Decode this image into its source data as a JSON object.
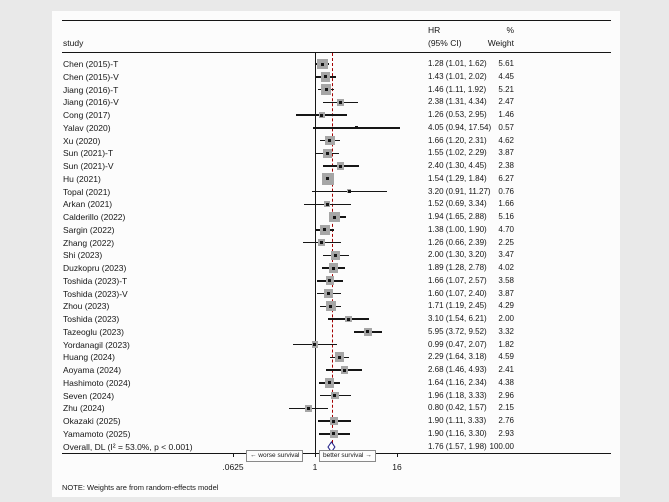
{
  "columns": {
    "study": "study",
    "hr_line1": "HR",
    "hr_line2": "(95% CI)",
    "weight_line1": "%",
    "weight_line2": "Weight"
  },
  "axis": {
    "ticks": [
      {
        "label": ".0625",
        "value": 0.0625
      },
      {
        "label": "1",
        "value": 1
      },
      {
        "label": "16",
        "value": 16
      }
    ],
    "left_note": "←  worse survival",
    "right_note": "better survival  →"
  },
  "footnote": "NOTE: Weights are from random-effects model",
  "colors": {
    "background": "#e9e9e9",
    "plot_background": "#fcfcfc",
    "line": "#161616",
    "marker": "#a6a6a6",
    "overall_reference_line": "#a40000",
    "diamond_stroke": "#26268a"
  },
  "chart_data": {
    "type": "forest",
    "effect_label": "HR (95% CI)",
    "x_scale": "log",
    "x_ticks": [
      0.0625,
      1,
      16
    ],
    "null_value": 1,
    "overall_estimate_line": 1.76,
    "studies": [
      {
        "name": "Chen (2015)-T",
        "hr": 1.28,
        "ci_low": 1.01,
        "ci_high": 1.62,
        "weight": 5.61
      },
      {
        "name": "Chen (2015)-V",
        "hr": 1.43,
        "ci_low": 1.01,
        "ci_high": 2.02,
        "weight": 4.45
      },
      {
        "name": "Jiang (2016)-T",
        "hr": 1.46,
        "ci_low": 1.11,
        "ci_high": 1.92,
        "weight": 5.21
      },
      {
        "name": "Jiang (2016)-V",
        "hr": 2.38,
        "ci_low": 1.31,
        "ci_high": 4.34,
        "weight": 2.47
      },
      {
        "name": "Cong (2017)",
        "hr": 1.26,
        "ci_low": 0.53,
        "ci_high": 2.95,
        "weight": 1.46
      },
      {
        "name": "Yalav (2020)",
        "hr": 4.05,
        "ci_low": 0.94,
        "ci_high": 17.54,
        "weight": 0.57
      },
      {
        "name": "Xu (2020)",
        "hr": 1.66,
        "ci_low": 1.2,
        "ci_high": 2.31,
        "weight": 4.62
      },
      {
        "name": "Sun (2021)-T",
        "hr": 1.55,
        "ci_low": 1.02,
        "ci_high": 2.29,
        "weight": 3.87
      },
      {
        "name": "Sun (2021)-V",
        "hr": 2.4,
        "ci_low": 1.3,
        "ci_high": 4.45,
        "weight": 2.38
      },
      {
        "name": "Hu (2021)",
        "hr": 1.54,
        "ci_low": 1.29,
        "ci_high": 1.84,
        "weight": 6.27
      },
      {
        "name": "Topal (2021)",
        "hr": 3.2,
        "ci_low": 0.91,
        "ci_high": 11.27,
        "weight": 0.76
      },
      {
        "name": "Arkan (2021)",
        "hr": 1.52,
        "ci_low": 0.69,
        "ci_high": 3.34,
        "weight": 1.66
      },
      {
        "name": "Calderillo (2022)",
        "hr": 1.94,
        "ci_low": 1.65,
        "ci_high": 2.88,
        "weight": 5.16
      },
      {
        "name": "Sargin (2022)",
        "hr": 1.38,
        "ci_low": 1.0,
        "ci_high": 1.9,
        "weight": 4.7
      },
      {
        "name": "Zhang (2022)",
        "hr": 1.26,
        "ci_low": 0.66,
        "ci_high": 2.39,
        "weight": 2.25
      },
      {
        "name": "Shi (2023)",
        "hr": 2.0,
        "ci_low": 1.3,
        "ci_high": 3.2,
        "weight": 3.47
      },
      {
        "name": "Duzkopru (2023)",
        "hr": 1.89,
        "ci_low": 1.28,
        "ci_high": 2.78,
        "weight": 4.02
      },
      {
        "name": "Toshida (2023)-T",
        "hr": 1.66,
        "ci_low": 1.07,
        "ci_high": 2.57,
        "weight": 3.58
      },
      {
        "name": "Toshida (2023)-V",
        "hr": 1.6,
        "ci_low": 1.07,
        "ci_high": 2.4,
        "weight": 3.87
      },
      {
        "name": "Zhou (2023)",
        "hr": 1.71,
        "ci_low": 1.19,
        "ci_high": 2.45,
        "weight": 4.29
      },
      {
        "name": "Toshida (2023)",
        "hr": 3.1,
        "ci_low": 1.54,
        "ci_high": 6.21,
        "weight": 2.0
      },
      {
        "name": "Tazeoglu (2023)",
        "hr": 5.95,
        "ci_low": 3.72,
        "ci_high": 9.52,
        "weight": 3.32
      },
      {
        "name": "Yordanagil (2023)",
        "hr": 0.99,
        "ci_low": 0.47,
        "ci_high": 2.07,
        "weight": 1.82
      },
      {
        "name": "Huang (2024)",
        "hr": 2.29,
        "ci_low": 1.64,
        "ci_high": 3.18,
        "weight": 4.59
      },
      {
        "name": "Aoyama (2024)",
        "hr": 2.68,
        "ci_low": 1.46,
        "ci_high": 4.93,
        "weight": 2.41
      },
      {
        "name": "Hashimoto (2024)",
        "hr": 1.64,
        "ci_low": 1.16,
        "ci_high": 2.34,
        "weight": 4.38
      },
      {
        "name": "Seven (2024)",
        "hr": 1.96,
        "ci_low": 1.18,
        "ci_high": 3.33,
        "weight": 2.96
      },
      {
        "name": "Zhu (2024)",
        "hr": 0.8,
        "ci_low": 0.42,
        "ci_high": 1.57,
        "weight": 2.15
      },
      {
        "name": "Okazaki (2025)",
        "hr": 1.9,
        "ci_low": 1.11,
        "ci_high": 3.33,
        "weight": 2.76
      },
      {
        "name": "Yamamoto (2025)",
        "hr": 1.9,
        "ci_low": 1.16,
        "ci_high": 3.3,
        "weight": 2.93
      }
    ],
    "overall": {
      "name": "Overall, DL (I² = 53.0%, p < 0.001)",
      "hr": 1.76,
      "ci_low": 1.57,
      "ci_high": 1.98,
      "weight": 100.0
    }
  }
}
